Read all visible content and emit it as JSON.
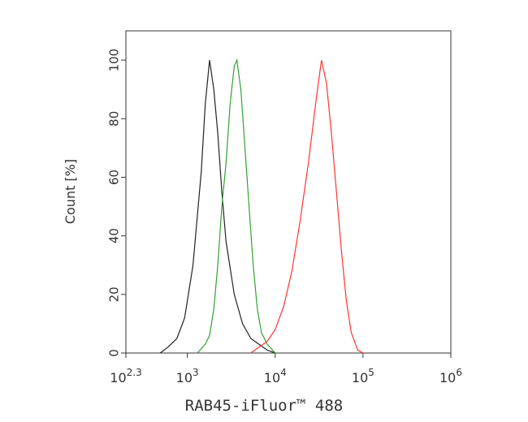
{
  "chart_data": {
    "type": "line",
    "x_label": "RAB45-iFluor™ 488",
    "y_label": "Count [%]",
    "xscale": "log",
    "xlim": [
      199.5,
      1000000
    ],
    "xticks": [
      {
        "value": 199.5,
        "label": "10",
        "superscript": "2.3"
      },
      {
        "value": 1000,
        "label": "10",
        "superscript": "3"
      },
      {
        "value": 10000,
        "label": "10",
        "superscript": "4"
      },
      {
        "value": 100000,
        "label": "10",
        "superscript": "5"
      },
      {
        "value": 1000000,
        "label": "10",
        "superscript": "6"
      }
    ],
    "ylim": [
      0,
      110
    ],
    "yticks": [
      0,
      20,
      40,
      60,
      80,
      100
    ],
    "grid": false,
    "series": [
      {
        "color": "#222222",
        "x": [
          490,
          600,
          760,
          930,
          1160,
          1440,
          1600,
          1790,
          2000,
          2220,
          2470,
          2760,
          3420,
          4250,
          5270,
          6540,
          8110,
          10000
        ],
        "values": [
          0,
          2,
          5,
          12,
          30,
          62,
          85,
          100,
          90,
          75,
          55,
          38,
          20,
          10,
          5,
          3,
          1,
          0
        ]
      },
      {
        "color": "#33a033",
        "x": [
          1300,
          1600,
          1790,
          2000,
          2220,
          2470,
          2760,
          3070,
          3420,
          3660,
          4060,
          4530,
          5040,
          5620,
          6260,
          6970,
          8110,
          10000
        ],
        "values": [
          0,
          3,
          6,
          15,
          30,
          50,
          65,
          85,
          98,
          100,
          90,
          70,
          50,
          30,
          15,
          7,
          3,
          0
        ]
      },
      {
        "color": "#ff3333",
        "x": [
          5270,
          6540,
          8110,
          10000,
          12500,
          15500,
          19200,
          23900,
          29700,
          33700,
          38400,
          43700,
          49800,
          56700,
          64500,
          73500,
          87000,
          100000
        ],
        "values": [
          0,
          2,
          4,
          8,
          16,
          28,
          45,
          65,
          88,
          100,
          92,
          75,
          55,
          35,
          18,
          7,
          1,
          0
        ]
      }
    ]
  }
}
